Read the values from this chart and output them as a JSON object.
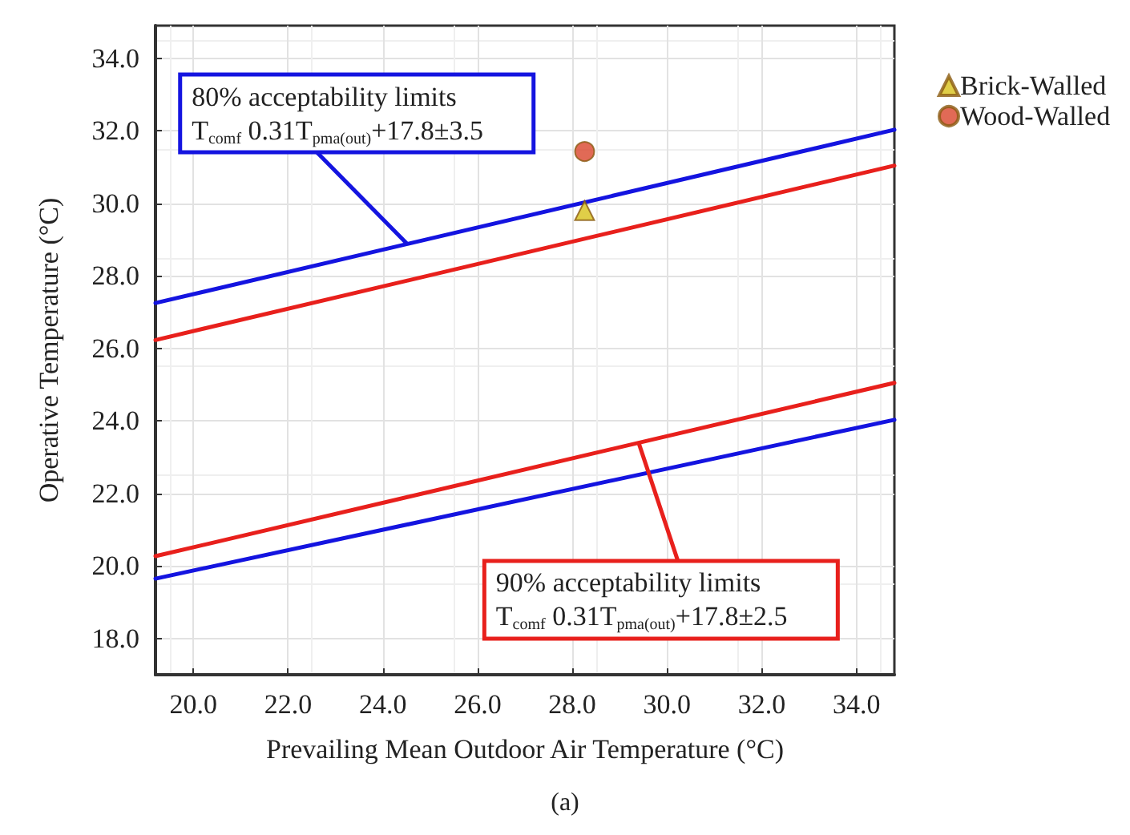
{
  "chart_data": {
    "type": "line",
    "xlabel": "Prevailing Mean Outdoor Air Temperature (°C)",
    "ylabel": "Operative Temperature (°C)",
    "xlim": [
      19.2,
      34.8
    ],
    "ylim": [
      17.0,
      34.9
    ],
    "xticks": [
      {
        "value": 20,
        "label": "20.0"
      },
      {
        "value": 22,
        "label": "22.0"
      },
      {
        "value": 24,
        "label": "24.0"
      },
      {
        "value": 26,
        "label": "26.0"
      },
      {
        "value": 28,
        "label": "28.0"
      },
      {
        "value": 30,
        "label": "30.0"
      },
      {
        "value": 32,
        "label": "32.0"
      },
      {
        "value": 34,
        "label": "34.0"
      }
    ],
    "yticks": [
      {
        "value": 18,
        "label": "18.0"
      },
      {
        "value": 20,
        "label": "20.0"
      },
      {
        "value": 22,
        "label": "22.0"
      },
      {
        "value": 24,
        "label": "24.0"
      },
      {
        "value": 26,
        "label": "26.0"
      },
      {
        "value": 28,
        "label": "28.0"
      },
      {
        "value": 30,
        "label": "30.0"
      },
      {
        "value": 32,
        "label": "32.0"
      },
      {
        "value": 34,
        "label": "34.0"
      }
    ],
    "grid": true,
    "legend": "top right",
    "series": [
      {
        "color": "#1414e0",
        "x": [
          19.2,
          34.8
        ],
        "values": [
          27.25,
          32.03
        ]
      },
      {
        "color": "#e8201c",
        "x": [
          19.2,
          34.8
        ],
        "values": [
          26.23,
          31.04
        ]
      },
      {
        "color": "#e8201c",
        "x": [
          19.2,
          34.8
        ],
        "values": [
          20.27,
          25.05
        ]
      },
      {
        "color": "#1414e0",
        "x": [
          19.2,
          34.8
        ],
        "values": [
          19.65,
          24.03
        ]
      },
      {
        "type": "scatter",
        "name": "Brick-Walled",
        "color": "#d8c21a",
        "marker": "triangle",
        "x": [
          28.26
        ],
        "values": [
          29.8
        ]
      },
      {
        "type": "scatter",
        "name": "Wood-Walled",
        "color": "#d9452c",
        "marker": "circle",
        "x": [
          28.26
        ],
        "values": [
          31.43
        ]
      }
    ],
    "annotations": [
      {
        "text": "80% acceptability limits\nT$_{comf}$ 0.31T$_{pma(out)}$+17.8±3.5",
        "x": 24.5,
        "y": 28.9
      },
      {
        "text": "90% acceptability limits\nT$_{comf}$ 0.31T$_{pma(out)}$+17.8±2.5",
        "x": 29.4,
        "y": 23.4
      },
      "(a)"
    ]
  }
}
